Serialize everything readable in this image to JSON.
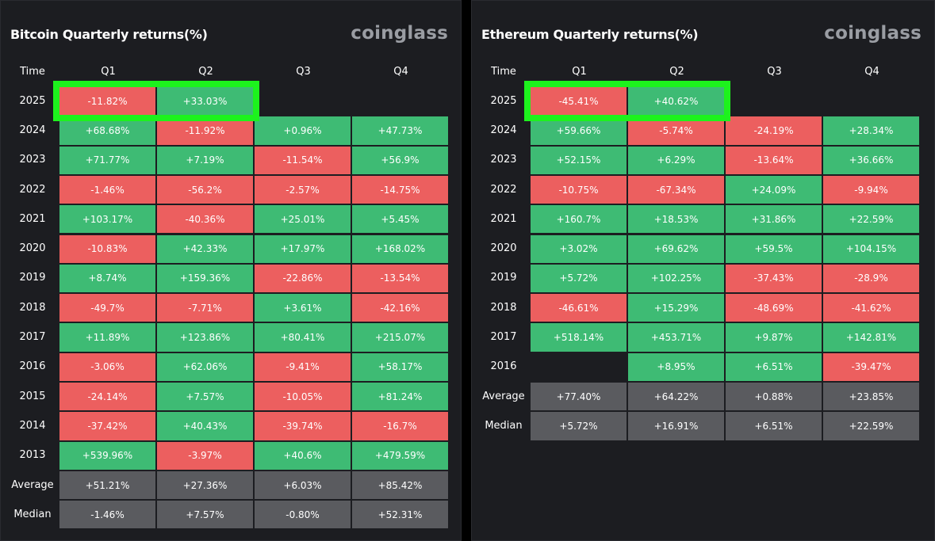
{
  "colors": {
    "positive": "#3ebb74",
    "negative": "#ec5f5f",
    "stat": "#5a5b5f",
    "highlight": "#1df21d",
    "panel": "#1c1d21"
  },
  "chart_data": [
    {
      "type": "table",
      "title": "Bitcoin Quarterly returns(%)",
      "brand": "coinglass",
      "header_label": "Time",
      "columns": [
        "Q1",
        "Q2",
        "Q3",
        "Q4"
      ],
      "rows": [
        {
          "label": "2025",
          "values": [
            "-11.82%",
            "+33.03%",
            null,
            null
          ]
        },
        {
          "label": "2024",
          "values": [
            "+68.68%",
            "-11.92%",
            "+0.96%",
            "+47.73%"
          ]
        },
        {
          "label": "2023",
          "values": [
            "+71.77%",
            "+7.19%",
            "-11.54%",
            "+56.9%"
          ]
        },
        {
          "label": "2022",
          "values": [
            "-1.46%",
            "-56.2%",
            "-2.57%",
            "-14.75%"
          ]
        },
        {
          "label": "2021",
          "values": [
            "+103.17%",
            "-40.36%",
            "+25.01%",
            "+5.45%"
          ]
        },
        {
          "label": "2020",
          "values": [
            "-10.83%",
            "+42.33%",
            "+17.97%",
            "+168.02%"
          ]
        },
        {
          "label": "2019",
          "values": [
            "+8.74%",
            "+159.36%",
            "-22.86%",
            "-13.54%"
          ]
        },
        {
          "label": "2018",
          "values": [
            "-49.7%",
            "-7.71%",
            "+3.61%",
            "-42.16%"
          ]
        },
        {
          "label": "2017",
          "values": [
            "+11.89%",
            "+123.86%",
            "+80.41%",
            "+215.07%"
          ]
        },
        {
          "label": "2016",
          "values": [
            "-3.06%",
            "+62.06%",
            "-9.41%",
            "+58.17%"
          ]
        },
        {
          "label": "2015",
          "values": [
            "-24.14%",
            "+7.57%",
            "-10.05%",
            "+81.24%"
          ]
        },
        {
          "label": "2014",
          "values": [
            "-37.42%",
            "+40.43%",
            "-39.74%",
            "-16.7%"
          ]
        },
        {
          "label": "2013",
          "values": [
            "+539.96%",
            "-3.97%",
            "+40.6%",
            "+479.59%"
          ]
        },
        {
          "label": "Average",
          "stat": true,
          "values": [
            "+51.21%",
            "+27.36%",
            "+6.03%",
            "+85.42%"
          ]
        },
        {
          "label": "Median",
          "stat": true,
          "values": [
            "-1.46%",
            "+7.57%",
            "-0.80%",
            "+52.31%"
          ]
        }
      ],
      "highlighted": {
        "row": "2025",
        "columns": [
          "Q1",
          "Q2"
        ]
      }
    },
    {
      "type": "table",
      "title": "Ethereum Quarterly returns(%)",
      "brand": "coinglass",
      "header_label": "Time",
      "columns": [
        "Q1",
        "Q2",
        "Q3",
        "Q4"
      ],
      "rows": [
        {
          "label": "2025",
          "values": [
            "-45.41%",
            "+40.62%",
            null,
            null
          ]
        },
        {
          "label": "2024",
          "values": [
            "+59.66%",
            "-5.74%",
            "-24.19%",
            "+28.34%"
          ]
        },
        {
          "label": "2023",
          "values": [
            "+52.15%",
            "+6.29%",
            "-13.64%",
            "+36.66%"
          ]
        },
        {
          "label": "2022",
          "values": [
            "-10.75%",
            "-67.34%",
            "+24.09%",
            "-9.94%"
          ]
        },
        {
          "label": "2021",
          "values": [
            "+160.7%",
            "+18.53%",
            "+31.86%",
            "+22.59%"
          ]
        },
        {
          "label": "2020",
          "values": [
            "+3.02%",
            "+69.62%",
            "+59.5%",
            "+104.15%"
          ]
        },
        {
          "label": "2019",
          "values": [
            "+5.72%",
            "+102.25%",
            "-37.43%",
            "-28.9%"
          ]
        },
        {
          "label": "2018",
          "values": [
            "-46.61%",
            "+15.29%",
            "-48.69%",
            "-41.62%"
          ]
        },
        {
          "label": "2017",
          "values": [
            "+518.14%",
            "+453.71%",
            "+9.87%",
            "+142.81%"
          ]
        },
        {
          "label": "2016",
          "values": [
            null,
            "+8.95%",
            "+6.51%",
            "-39.47%"
          ]
        },
        {
          "label": "Average",
          "stat": true,
          "values": [
            "+77.40%",
            "+64.22%",
            "+0.88%",
            "+23.85%"
          ]
        },
        {
          "label": "Median",
          "stat": true,
          "values": [
            "+5.72%",
            "+16.91%",
            "+6.51%",
            "+22.59%"
          ]
        }
      ],
      "highlighted": {
        "row": "2025",
        "columns": [
          "Q1",
          "Q2"
        ]
      }
    }
  ]
}
